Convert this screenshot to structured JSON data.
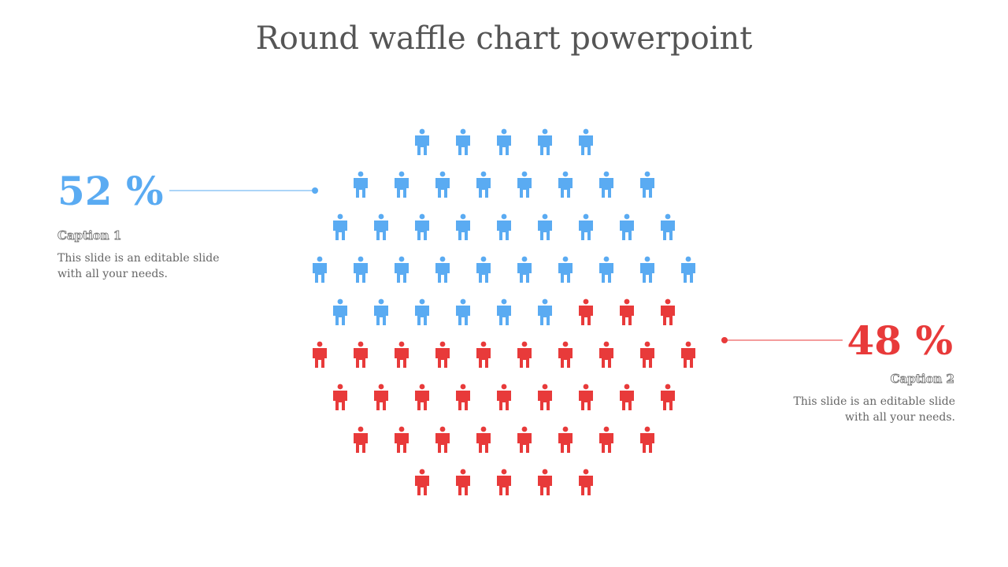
{
  "title": "Round waffle chart powerpoint",
  "colors": {
    "blue": "#5aabf2",
    "red": "#e83a3a"
  },
  "chart_data": {
    "type": "waffle",
    "shape": "circle",
    "icon": "person-icon",
    "series": [
      {
        "value": 52,
        "color": "#5aabf2",
        "label": "52 %",
        "caption": "Caption 1",
        "description": [
          "This slide is an editable slide",
          "with all your needs."
        ]
      },
      {
        "value": 48,
        "color": "#e83a3a",
        "label": "48 %",
        "caption": "Caption 2",
        "description": [
          "This slide is an editable slide",
          "with all your needs."
        ]
      }
    ]
  }
}
